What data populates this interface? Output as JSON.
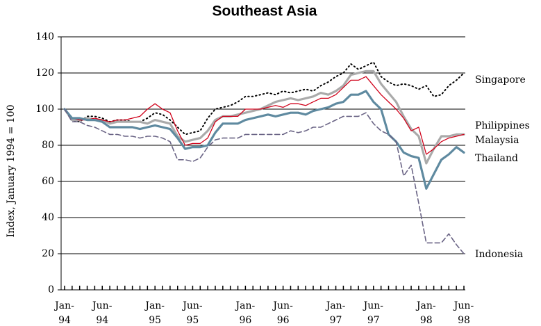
{
  "chart_data": {
    "type": "line",
    "title": "Southeast Asia",
    "y_label": "Index, January 1994 = 100",
    "categories": [
      "Jan-94",
      null,
      null,
      null,
      null,
      "Jun-94",
      null,
      null,
      null,
      null,
      null,
      null,
      "Jan-95",
      null,
      null,
      null,
      null,
      "Jun-95",
      null,
      null,
      null,
      null,
      null,
      null,
      "Jan-96",
      null,
      null,
      null,
      null,
      "Jun-96",
      null,
      null,
      null,
      null,
      null,
      null,
      "Jan-97",
      null,
      null,
      null,
      null,
      "Jun-97",
      null,
      null,
      null,
      null,
      null,
      null,
      "Jan-98",
      null,
      null,
      null,
      null,
      "Jun-98"
    ],
    "ylim": [
      0,
      140
    ],
    "yticks": [
      0,
      20,
      40,
      60,
      80,
      100,
      120,
      140
    ],
    "grid": true,
    "series": [
      {
        "name": "Singapore",
        "color": "#000000",
        "line_style": "dotted",
        "values": [
          100,
          94,
          93,
          96,
          96,
          95,
          93,
          94,
          94,
          93,
          93,
          95,
          98,
          97,
          94,
          90,
          86,
          87,
          88,
          95,
          100,
          101,
          102,
          104,
          107,
          107,
          108,
          109,
          108,
          110,
          109,
          110,
          111,
          110,
          113,
          115,
          118,
          120,
          125,
          122,
          124,
          126,
          118,
          115,
          113,
          114,
          113,
          111,
          113,
          107,
          108,
          113,
          116,
          120
        ]
      },
      {
        "name": "Philippines",
        "color": "#aaaaaa",
        "line_style": "solid",
        "values": [
          100,
          94,
          94,
          95,
          94,
          94,
          92,
          93,
          93,
          93,
          93,
          92,
          94,
          93,
          92,
          85,
          82,
          83,
          84,
          88,
          94,
          96,
          96,
          97,
          98,
          99,
          100,
          102,
          104,
          105,
          106,
          105,
          106,
          107,
          109,
          108,
          110,
          113,
          119,
          120,
          121,
          121,
          114,
          109,
          104,
          96,
          89,
          85,
          70,
          78,
          85,
          85,
          86,
          86
        ]
      },
      {
        "name": "Malaysia",
        "color": "#d0021b",
        "line_style": "thin",
        "values": [
          100,
          95,
          94,
          94,
          95,
          94,
          93,
          94,
          94,
          95,
          96,
          100,
          103,
          100,
          98,
          88,
          80,
          81,
          81,
          84,
          93,
          96,
          96,
          96,
          100,
          100,
          100,
          101,
          102,
          101,
          103,
          103,
          102,
          104,
          106,
          106,
          108,
          112,
          116,
          116,
          118,
          113,
          108,
          104,
          100,
          95,
          88,
          90,
          75,
          78,
          82,
          84,
          85,
          86
        ]
      },
      {
        "name": "Thailand",
        "color": "#5f8aa0",
        "line_style": "solid",
        "values": [
          100,
          95,
          95,
          94,
          94,
          93,
          90,
          90,
          90,
          90,
          89,
          90,
          91,
          90,
          89,
          84,
          78,
          79,
          79,
          80,
          87,
          92,
          92,
          92,
          94,
          95,
          96,
          97,
          96,
          97,
          98,
          98,
          97,
          99,
          100,
          101,
          103,
          104,
          108,
          108,
          110,
          104,
          100,
          86,
          82,
          76,
          74,
          73,
          56,
          64,
          72,
          75,
          79,
          76
        ]
      },
      {
        "name": "Indonesia",
        "color": "#6a6485",
        "line_style": "dashed",
        "values": [
          100,
          93,
          93,
          91,
          90,
          88,
          86,
          86,
          85,
          85,
          84,
          85,
          85,
          84,
          82,
          72,
          72,
          71,
          73,
          79,
          83,
          84,
          84,
          84,
          86,
          86,
          86,
          86,
          86,
          86,
          88,
          87,
          88,
          90,
          90,
          92,
          94,
          96,
          96,
          96,
          98,
          92,
          88,
          86,
          82,
          63,
          69,
          48,
          26,
          26,
          26,
          31,
          25,
          20
        ]
      }
    ]
  }
}
